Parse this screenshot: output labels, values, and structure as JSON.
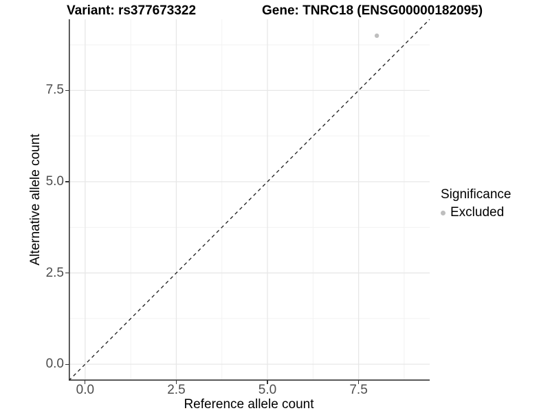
{
  "titles": {
    "variant": "Variant: rs377673322",
    "gene": "Gene: TNRC18 (ENSG00000182095)"
  },
  "chart_data": {
    "type": "scatter",
    "title_left": "Variant: rs377673322",
    "title_right": "Gene: TNRC18 (ENSG00000182095)",
    "xlabel": "Reference allele count",
    "ylabel": "Alternative allele count",
    "xlim": [
      -0.45,
      9.45
    ],
    "ylim": [
      -0.45,
      9.45
    ],
    "x_ticks": [
      0.0,
      2.5,
      5.0,
      7.5
    ],
    "y_ticks": [
      0.0,
      2.5,
      5.0,
      7.5
    ],
    "x_minor_ticks": [
      1.25,
      3.75,
      6.25,
      8.75
    ],
    "y_minor_ticks": [
      1.25,
      3.75,
      6.25,
      8.75
    ],
    "grid": true,
    "points": [
      {
        "x": 8,
        "y": 9,
        "significance": "Excluded"
      }
    ],
    "reference_line": {
      "slope": 1,
      "intercept": 0,
      "style": "dashed",
      "color": "#1a1a1a"
    },
    "legend": {
      "title": "Significance",
      "position": "right",
      "entries": [
        {
          "label": "Excluded",
          "color": "#bebebe"
        }
      ]
    }
  },
  "colors": {
    "background": "#ffffff",
    "grid_major": "#e7e7e7",
    "grid_minor": "#f1f1f1",
    "axis_line": "#333333",
    "tick_label": "#4d4d4d",
    "point": "#bebebe",
    "dashed_line": "#1a1a1a"
  }
}
